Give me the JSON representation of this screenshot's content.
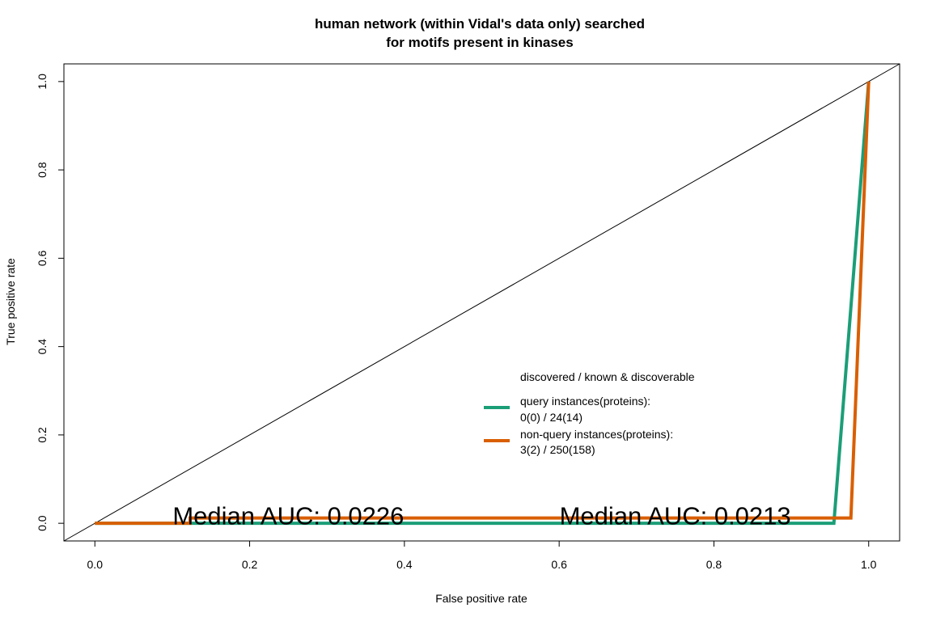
{
  "chart_data": {
    "type": "line",
    "title_line1": "human network (within Vidal's data only) searched",
    "title_line2": "for motifs present in kinases",
    "xlabel": "False positive rate",
    "ylabel": "True positive rate",
    "xlim": [
      -0.04,
      1.04
    ],
    "ylim": [
      -0.04,
      1.04
    ],
    "x_ticks": [
      0.0,
      0.2,
      0.4,
      0.6,
      0.8,
      1.0
    ],
    "x_tick_labels": [
      "0.0",
      "0.2",
      "0.4",
      "0.6",
      "0.8",
      "1.0"
    ],
    "y_ticks": [
      0.0,
      0.2,
      0.4,
      0.6,
      0.8,
      1.0
    ],
    "y_tick_labels": [
      "0.0",
      "0.2",
      "0.4",
      "0.6",
      "0.8",
      "1.0"
    ],
    "grid": false,
    "diagonal_reference": {
      "x": [
        -0.04,
        1.04
      ],
      "y": [
        -0.04,
        1.04
      ],
      "color": "#000000"
    },
    "series": [
      {
        "name": "query instances(proteins):",
        "stats": "0(0) / 24(14)",
        "color": "#1b9e77",
        "x": [
          0.0,
          0.955,
          1.0
        ],
        "y": [
          0.0,
          0.0,
          1.0
        ]
      },
      {
        "name": "non-query instances(proteins):",
        "stats": "3(2) / 250(158)",
        "color": "#d95f02",
        "x": [
          0.0,
          0.123,
          0.123,
          0.977,
          1.0
        ],
        "y": [
          0.0,
          0.0,
          0.012,
          0.012,
          1.0
        ]
      }
    ],
    "legend": {
      "title": "discovered / known & discoverable",
      "placement": "lower-right"
    },
    "annotations": [
      {
        "text": "Median AUC: 0.0226",
        "x": 0.25,
        "y": 0.012
      },
      {
        "text": "Median AUC: 0.0213",
        "x": 0.75,
        "y": 0.012
      }
    ]
  }
}
